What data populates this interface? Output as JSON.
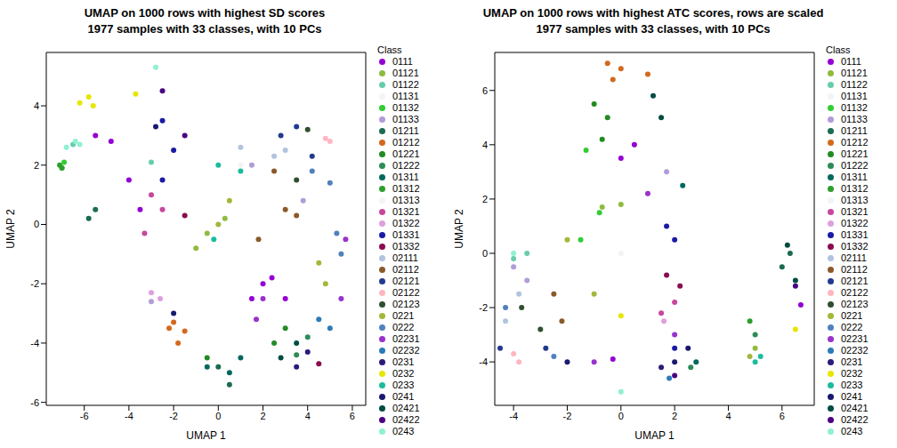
{
  "chart_data": [
    {
      "type": "scatter",
      "title": "UMAP on 1000 rows with highest SD scores\n1977 samples with 33 classes, with 10 PCs",
      "x_label": "UMAP 1",
      "y_label": "UMAP 2",
      "legend": "right",
      "legend_title": "Class",
      "xlim": [
        -7.7,
        6.6
      ],
      "ylim": [
        -6.1,
        5.8
      ],
      "xticks": [
        -6,
        -4,
        -2,
        0,
        2,
        4,
        6
      ],
      "yticks": [
        -6,
        -4,
        -2,
        0,
        2,
        4
      ],
      "series": [
        {
          "name": "0111",
          "color": "#9400d3",
          "x": [
            -4.8,
            -5.5,
            -4.0,
            -3.5,
            2.0,
            1.5,
            3.0,
            2.4
          ],
          "y": [
            2.8,
            3.0,
            1.5,
            0.5,
            -2.0,
            -2.5,
            -2.5,
            -1.8
          ]
        },
        {
          "name": "01121",
          "color": "#8fbc3f",
          "x": [
            -0.5,
            0.3,
            -1.0
          ],
          "y": [
            -0.3,
            0.2,
            -0.8
          ]
        },
        {
          "name": "01122",
          "color": "#66cdaa",
          "x": [
            -6.5,
            -3.0
          ],
          "y": [
            2.7,
            2.1
          ]
        },
        {
          "name": "01131",
          "color": "#f4f4f4",
          "x": [
            1.0
          ],
          "y": [
            2.0
          ]
        },
        {
          "name": "01132",
          "color": "#32cd32",
          "x": [
            -7.0,
            -6.9
          ],
          "y": [
            1.9,
            2.1
          ]
        },
        {
          "name": "01133",
          "color": "#b19cd9",
          "x": [
            -3.0,
            1.5,
            3.8
          ],
          "y": [
            -2.6,
            2.0,
            0.8
          ]
        },
        {
          "name": "01211",
          "color": "#1a6b4f",
          "x": [
            -5.5,
            -5.8,
            0.0,
            0.5
          ],
          "y": [
            0.5,
            0.2,
            -4.8,
            -5.4
          ]
        },
        {
          "name": "01212",
          "color": "#d2691e",
          "x": [
            -2.2,
            -1.8,
            -1.5,
            -2.0
          ],
          "y": [
            -3.5,
            -4.0,
            -3.6,
            -3.3
          ]
        },
        {
          "name": "01221",
          "color": "#228b22",
          "x": [
            2.5,
            3.0,
            -0.5
          ],
          "y": [
            -4.0,
            -3.5,
            -4.5
          ]
        },
        {
          "name": "01222",
          "color": "#2e8b57",
          "x": [
            3.5,
            4.0
          ],
          "y": [
            -4.4,
            -3.8
          ]
        },
        {
          "name": "01311",
          "color": "#00695c",
          "x": [
            -0.5,
            1.0,
            0.5
          ],
          "y": [
            -4.8,
            -4.5,
            -5.0
          ]
        },
        {
          "name": "01312",
          "color": "#2e9e2e",
          "x": [
            -7.0,
            -7.1
          ],
          "y": [
            1.9,
            2.0
          ]
        },
        {
          "name": "01313",
          "color": "#f4f4f4",
          "x": [
            0.0
          ],
          "y": [
            0.0
          ]
        },
        {
          "name": "01321",
          "color": "#c7479c",
          "x": [
            -3.0,
            -2.5,
            -3.3
          ],
          "y": [
            1.0,
            0.5,
            -0.3
          ]
        },
        {
          "name": "01322",
          "color": "#dda0dd",
          "x": [
            -3.0,
            -2.6
          ],
          "y": [
            -2.3,
            -2.5
          ]
        },
        {
          "name": "01331",
          "color": "#1a1aa6",
          "x": [
            -2.5,
            -2.0,
            -2.5
          ],
          "y": [
            3.5,
            2.5,
            1.5
          ]
        },
        {
          "name": "01332",
          "color": "#8b0a50",
          "x": [
            -1.5,
            4.5
          ],
          "y": [
            0.3,
            -4.7
          ]
        },
        {
          "name": "02111",
          "color": "#b0c4de",
          "x": [
            3.0,
            1.0,
            2.5
          ],
          "y": [
            2.5,
            2.6,
            2.3
          ]
        },
        {
          "name": "02112",
          "color": "#8b5a2b",
          "x": [
            3.0,
            2.5,
            3.5,
            1.8
          ],
          "y": [
            0.5,
            1.8,
            0.3,
            -0.5
          ]
        },
        {
          "name": "02121",
          "color": "#213a8f",
          "x": [
            3.5,
            4.2,
            2.8
          ],
          "y": [
            3.3,
            2.3,
            3.0
          ]
        },
        {
          "name": "02122",
          "color": "#ffb6c1",
          "x": [
            4.8,
            5.0
          ],
          "y": [
            2.9,
            2.8
          ]
        },
        {
          "name": "02123",
          "color": "#2f4f2f",
          "x": [
            4.0,
            3.5
          ],
          "y": [
            3.2,
            1.5
          ]
        },
        {
          "name": "0221",
          "color": "#a2b83a",
          "x": [
            4.8,
            4.5,
            0.5,
            0.0
          ],
          "y": [
            -2.0,
            -1.3,
            0.8,
            0.0
          ]
        },
        {
          "name": "0222",
          "color": "#4f81bd",
          "x": [
            4.2,
            5.0,
            5.5,
            5.3
          ],
          "y": [
            1.8,
            1.4,
            -1.0,
            -0.3
          ]
        },
        {
          "name": "02231",
          "color": "#9932cc",
          "x": [
            2.0,
            1.7,
            5.5,
            5.7
          ],
          "y": [
            -2.5,
            -3.2,
            -2.5,
            -0.5
          ]
        },
        {
          "name": "02232",
          "color": "#2c7bb6",
          "x": [
            4.5,
            5.0
          ],
          "y": [
            -3.2,
            -3.5
          ]
        },
        {
          "name": "0231",
          "color": "#2e1a7a",
          "x": [
            3.5,
            4.0
          ],
          "y": [
            -4.8,
            -4.3
          ]
        },
        {
          "name": "0232",
          "color": "#e6e600",
          "x": [
            -6.2,
            -5.8,
            -5.6,
            -3.7
          ],
          "y": [
            4.1,
            4.3,
            4.0,
            4.4
          ]
        },
        {
          "name": "0233",
          "color": "#1abc9c",
          "x": [
            0.0,
            1.0,
            -0.2
          ],
          "y": [
            2.0,
            1.8,
            -0.5
          ]
        },
        {
          "name": "0241",
          "color": "#191970",
          "x": [
            -2.0,
            -2.8
          ],
          "y": [
            -3.0,
            3.3
          ]
        },
        {
          "name": "02421",
          "color": "#004d40",
          "x": [
            3.5,
            2.8
          ],
          "y": [
            -4.0,
            -4.5
          ]
        },
        {
          "name": "02422",
          "color": "#4b0082",
          "x": [
            -2.5,
            -1.5
          ],
          "y": [
            4.5,
            3.0
          ]
        },
        {
          "name": "0243",
          "color": "#8ff0d4",
          "x": [
            -6.8,
            -6.4,
            -6.2,
            -2.8
          ],
          "y": [
            2.6,
            2.8,
            2.7,
            5.3
          ]
        }
      ]
    },
    {
      "type": "scatter",
      "title": "UMAP on 1000 rows with highest ATC scores, rows are scaled\n1977 samples with 33 classes, with 10 PCs",
      "x_label": "UMAP 1",
      "y_label": "UMAP 2",
      "legend": "right",
      "legend_title": "Class",
      "xlim": [
        -4.7,
        7.2
      ],
      "ylim": [
        -5.6,
        7.4
      ],
      "xticks": [
        -4,
        -2,
        0,
        2,
        4,
        6
      ],
      "yticks": [
        -4,
        -2,
        0,
        2,
        4,
        6
      ],
      "series": [
        {
          "name": "0111",
          "color": "#9400d3",
          "x": [
            0.0,
            0.5,
            6.7,
            -0.3
          ],
          "y": [
            3.5,
            4.0,
            -1.9,
            -3.9
          ]
        },
        {
          "name": "01121",
          "color": "#8fbc3f",
          "x": [
            -0.7,
            0.0,
            5.0
          ],
          "y": [
            1.7,
            1.8,
            -3.5
          ]
        },
        {
          "name": "01122",
          "color": "#66cdaa",
          "x": [
            -4.0,
            -3.5
          ],
          "y": [
            -0.2,
            0.0
          ]
        },
        {
          "name": "01131",
          "color": "#f4f4f4",
          "x": [
            0.0
          ],
          "y": [
            0.0
          ]
        },
        {
          "name": "01132",
          "color": "#32cd32",
          "x": [
            -1.3,
            -0.8,
            -1.5
          ],
          "y": [
            3.8,
            1.5,
            0.5
          ]
        },
        {
          "name": "01133",
          "color": "#b19cd9",
          "x": [
            1.7,
            -4.0,
            -3.5
          ],
          "y": [
            3.0,
            -0.5,
            -1.0
          ]
        },
        {
          "name": "01211",
          "color": "#1a6b4f",
          "x": [
            6.3,
            6.0
          ],
          "y": [
            0.0,
            -0.5
          ]
        },
        {
          "name": "01212",
          "color": "#d2691e",
          "x": [
            -0.5,
            0.0,
            1.0,
            -0.3
          ],
          "y": [
            7.0,
            6.8,
            6.6,
            6.4
          ]
        },
        {
          "name": "01221",
          "color": "#228b22",
          "x": [
            -1.0,
            -0.7,
            -0.5
          ],
          "y": [
            5.5,
            4.2,
            5.0
          ]
        },
        {
          "name": "01222",
          "color": "#2e8b57",
          "x": [
            5.0,
            2.6
          ],
          "y": [
            -3.0,
            -4.2
          ]
        },
        {
          "name": "01311",
          "color": "#00695c",
          "x": [
            2.3,
            2.8
          ],
          "y": [
            2.5,
            -4.0
          ]
        },
        {
          "name": "01312",
          "color": "#2e9e2e",
          "x": [
            4.8
          ],
          "y": [
            -2.5
          ]
        },
        {
          "name": "01313",
          "color": "#f4f4f4",
          "x": [
            0.0
          ],
          "y": [
            0.0
          ]
        },
        {
          "name": "01321",
          "color": "#c7479c",
          "x": [
            2.0,
            1.5
          ],
          "y": [
            -1.8,
            -2.2
          ]
        },
        {
          "name": "01322",
          "color": "#dda0dd",
          "x": [
            1.6
          ],
          "y": [
            -2.5
          ]
        },
        {
          "name": "01331",
          "color": "#1a1aa6",
          "x": [
            2.0,
            1.7,
            2.0
          ],
          "y": [
            0.5,
            1.0,
            -3.5
          ]
        },
        {
          "name": "01332",
          "color": "#8b0a50",
          "x": [
            1.7,
            2.2
          ],
          "y": [
            -0.8,
            -1.2
          ]
        },
        {
          "name": "02111",
          "color": "#b0c4de",
          "x": [
            -3.8,
            -4.3
          ],
          "y": [
            -1.5,
            -2.5
          ]
        },
        {
          "name": "02112",
          "color": "#8b5a2b",
          "x": [
            -2.5,
            -2.2
          ],
          "y": [
            -1.5,
            -2.5
          ]
        },
        {
          "name": "02121",
          "color": "#213a8f",
          "x": [
            -4.5,
            -2.8
          ],
          "y": [
            -3.5,
            -3.5
          ]
        },
        {
          "name": "02122",
          "color": "#ffb6c1",
          "x": [
            -4.0,
            -3.8
          ],
          "y": [
            -3.7,
            -4.0
          ]
        },
        {
          "name": "02123",
          "color": "#2f4f2f",
          "x": [
            -3.7,
            -3.0
          ],
          "y": [
            -2.0,
            -2.8
          ]
        },
        {
          "name": "0221",
          "color": "#a2b83a",
          "x": [
            -2.0,
            -1.0,
            4.8
          ],
          "y": [
            0.5,
            -1.5,
            -3.8
          ]
        },
        {
          "name": "0222",
          "color": "#4f81bd",
          "x": [
            -2.5,
            -4.3
          ],
          "y": [
            -3.8,
            -2.0
          ]
        },
        {
          "name": "02231",
          "color": "#9932cc",
          "x": [
            1.0,
            2.0,
            -1.0
          ],
          "y": [
            2.2,
            -3.0,
            -4.0
          ]
        },
        {
          "name": "02232",
          "color": "#2c7bb6",
          "x": [
            1.8
          ],
          "y": [
            -4.6
          ]
        },
        {
          "name": "0231",
          "color": "#2e1a7a",
          "x": [
            1.5
          ],
          "y": [
            -4.2
          ]
        },
        {
          "name": "0232",
          "color": "#e6e600",
          "x": [
            6.5,
            0.0
          ],
          "y": [
            -2.8,
            -2.3
          ]
        },
        {
          "name": "0233",
          "color": "#1abc9c",
          "x": [
            5.0,
            5.2
          ],
          "y": [
            -4.0,
            -3.8
          ]
        },
        {
          "name": "0241",
          "color": "#191970",
          "x": [
            2.0,
            2.5,
            -2.0
          ],
          "y": [
            -4.0,
            -3.5,
            -4.0
          ]
        },
        {
          "name": "02421",
          "color": "#004d40",
          "x": [
            1.5,
            1.2,
            6.2,
            6.5
          ],
          "y": [
            5.0,
            5.8,
            0.3,
            -1.0
          ]
        },
        {
          "name": "02422",
          "color": "#4b0082",
          "x": [
            2.0,
            6.5
          ],
          "y": [
            -4.5,
            -1.2
          ]
        },
        {
          "name": "0243",
          "color": "#8ff0d4",
          "x": [
            -4.0,
            0.0
          ],
          "y": [
            0.0,
            -5.1
          ]
        }
      ]
    }
  ]
}
